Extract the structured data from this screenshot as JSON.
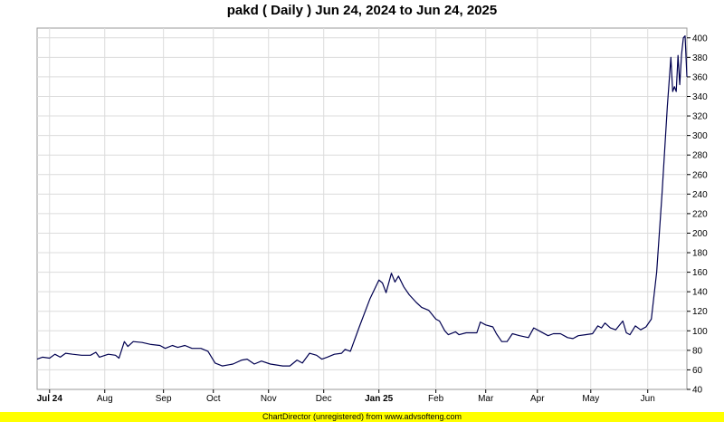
{
  "title": "pakd ( Daily ) Jun 24, 2024 to Jun 24, 2025",
  "footer": "ChartDirector (unregistered) from www.advsofteng.com",
  "colors": {
    "line": "#000050",
    "grid": "#dcdcdc",
    "footer_bg": "#ffff00"
  },
  "chart_data": {
    "type": "line",
    "title": "pakd ( Daily ) Jun 24, 2024 to Jun 24, 2025",
    "xlabel": "",
    "ylabel": "",
    "ylim": [
      40,
      410
    ],
    "xlim": [
      "2024-06-24",
      "2025-06-24"
    ],
    "y_ticks": [
      40,
      60,
      80,
      100,
      120,
      140,
      160,
      180,
      200,
      220,
      240,
      260,
      280,
      300,
      320,
      340,
      360,
      380,
      400
    ],
    "x_ticks": [
      {
        "date": "2024-07-01",
        "label": "Jul 24",
        "bold": true
      },
      {
        "date": "2024-08-01",
        "label": "Aug",
        "bold": false
      },
      {
        "date": "2024-09-03",
        "label": "Sep",
        "bold": false
      },
      {
        "date": "2024-10-01",
        "label": "Oct",
        "bold": false
      },
      {
        "date": "2024-11-01",
        "label": "Nov",
        "bold": false
      },
      {
        "date": "2024-12-02",
        "label": "Dec",
        "bold": false
      },
      {
        "date": "2025-01-02",
        "label": "Jan 25",
        "bold": true
      },
      {
        "date": "2025-02-03",
        "label": "Feb",
        "bold": false
      },
      {
        "date": "2025-03-03",
        "label": "Mar",
        "bold": false
      },
      {
        "date": "2025-04-01",
        "label": "Apr",
        "bold": false
      },
      {
        "date": "2025-05-01",
        "label": "May",
        "bold": false
      },
      {
        "date": "2025-06-02",
        "label": "Jun",
        "bold": false
      }
    ],
    "grid": true,
    "y_axis_side": "right",
    "series": [
      {
        "values": [
          {
            "x": "2024-06-24",
            "y": 71
          },
          {
            "x": "2024-06-27",
            "y": 73
          },
          {
            "x": "2024-07-01",
            "y": 72
          },
          {
            "x": "2024-07-04",
            "y": 76
          },
          {
            "x": "2024-07-07",
            "y": 73
          },
          {
            "x": "2024-07-10",
            "y": 77
          },
          {
            "x": "2024-07-14",
            "y": 76
          },
          {
            "x": "2024-07-19",
            "y": 75
          },
          {
            "x": "2024-07-24",
            "y": 75
          },
          {
            "x": "2024-07-27",
            "y": 78
          },
          {
            "x": "2024-07-29",
            "y": 73
          },
          {
            "x": "2024-08-03",
            "y": 76
          },
          {
            "x": "2024-08-07",
            "y": 75
          },
          {
            "x": "2024-08-09",
            "y": 72
          },
          {
            "x": "2024-08-12",
            "y": 89
          },
          {
            "x": "2024-08-14",
            "y": 84
          },
          {
            "x": "2024-08-17",
            "y": 89
          },
          {
            "x": "2024-08-22",
            "y": 88
          },
          {
            "x": "2024-08-27",
            "y": 86
          },
          {
            "x": "2024-09-01",
            "y": 85
          },
          {
            "x": "2024-09-04",
            "y": 82
          },
          {
            "x": "2024-09-08",
            "y": 85
          },
          {
            "x": "2024-09-11",
            "y": 83
          },
          {
            "x": "2024-09-15",
            "y": 85
          },
          {
            "x": "2024-09-19",
            "y": 82
          },
          {
            "x": "2024-09-24",
            "y": 82
          },
          {
            "x": "2024-09-28",
            "y": 79
          },
          {
            "x": "2024-10-02",
            "y": 67
          },
          {
            "x": "2024-10-06",
            "y": 64
          },
          {
            "x": "2024-10-12",
            "y": 66
          },
          {
            "x": "2024-10-17",
            "y": 70
          },
          {
            "x": "2024-10-20",
            "y": 71
          },
          {
            "x": "2024-10-24",
            "y": 66
          },
          {
            "x": "2024-10-28",
            "y": 69
          },
          {
            "x": "2024-11-02",
            "y": 66
          },
          {
            "x": "2024-11-09",
            "y": 64
          },
          {
            "x": "2024-11-13",
            "y": 64
          },
          {
            "x": "2024-11-17",
            "y": 70
          },
          {
            "x": "2024-11-20",
            "y": 67
          },
          {
            "x": "2024-11-24",
            "y": 77
          },
          {
            "x": "2024-11-28",
            "y": 75
          },
          {
            "x": "2024-12-01",
            "y": 71
          },
          {
            "x": "2024-12-04",
            "y": 73
          },
          {
            "x": "2024-12-08",
            "y": 76
          },
          {
            "x": "2024-12-12",
            "y": 77
          },
          {
            "x": "2024-12-14",
            "y": 81
          },
          {
            "x": "2024-12-17",
            "y": 79
          },
          {
            "x": "2024-12-22",
            "y": 104
          },
          {
            "x": "2024-12-28",
            "y": 133
          },
          {
            "x": "2025-01-02",
            "y": 152
          },
          {
            "x": "2025-01-04",
            "y": 149
          },
          {
            "x": "2025-01-06",
            "y": 139
          },
          {
            "x": "2025-01-09",
            "y": 159
          },
          {
            "x": "2025-01-11",
            "y": 150
          },
          {
            "x": "2025-01-13",
            "y": 156
          },
          {
            "x": "2025-01-16",
            "y": 145
          },
          {
            "x": "2025-01-19",
            "y": 137
          },
          {
            "x": "2025-01-23",
            "y": 129
          },
          {
            "x": "2025-01-26",
            "y": 124
          },
          {
            "x": "2025-01-30",
            "y": 121
          },
          {
            "x": "2025-02-03",
            "y": 112
          },
          {
            "x": "2025-02-05",
            "y": 110
          },
          {
            "x": "2025-02-08",
            "y": 100
          },
          {
            "x": "2025-02-10",
            "y": 96
          },
          {
            "x": "2025-02-14",
            "y": 99
          },
          {
            "x": "2025-02-16",
            "y": 96
          },
          {
            "x": "2025-02-20",
            "y": 98
          },
          {
            "x": "2025-02-26",
            "y": 98
          },
          {
            "x": "2025-02-28",
            "y": 109
          },
          {
            "x": "2025-03-03",
            "y": 106
          },
          {
            "x": "2025-03-07",
            "y": 104
          },
          {
            "x": "2025-03-09",
            "y": 97
          },
          {
            "x": "2025-03-12",
            "y": 89
          },
          {
            "x": "2025-03-15",
            "y": 89
          },
          {
            "x": "2025-03-18",
            "y": 97
          },
          {
            "x": "2025-03-22",
            "y": 95
          },
          {
            "x": "2025-03-27",
            "y": 93
          },
          {
            "x": "2025-03-30",
            "y": 103
          },
          {
            "x": "2025-04-02",
            "y": 100
          },
          {
            "x": "2025-04-07",
            "y": 95
          },
          {
            "x": "2025-04-10",
            "y": 97
          },
          {
            "x": "2025-04-14",
            "y": 97
          },
          {
            "x": "2025-04-18",
            "y": 93
          },
          {
            "x": "2025-04-21",
            "y": 92
          },
          {
            "x": "2025-04-24",
            "y": 95
          },
          {
            "x": "2025-04-28",
            "y": 96
          },
          {
            "x": "2025-05-02",
            "y": 97
          },
          {
            "x": "2025-05-05",
            "y": 105
          },
          {
            "x": "2025-05-07",
            "y": 103
          },
          {
            "x": "2025-05-09",
            "y": 108
          },
          {
            "x": "2025-05-12",
            "y": 103
          },
          {
            "x": "2025-05-15",
            "y": 101
          },
          {
            "x": "2025-05-19",
            "y": 110
          },
          {
            "x": "2025-05-21",
            "y": 98
          },
          {
            "x": "2025-05-23",
            "y": 96
          },
          {
            "x": "2025-05-26",
            "y": 105
          },
          {
            "x": "2025-05-29",
            "y": 101
          },
          {
            "x": "2025-06-01",
            "y": 104
          },
          {
            "x": "2025-06-04",
            "y": 112
          },
          {
            "x": "2025-06-07",
            "y": 160
          },
          {
            "x": "2025-06-10",
            "y": 240
          },
          {
            "x": "2025-06-13",
            "y": 330
          },
          {
            "x": "2025-06-15",
            "y": 380
          },
          {
            "x": "2025-06-16",
            "y": 345
          },
          {
            "x": "2025-06-17",
            "y": 350
          },
          {
            "x": "2025-06-18",
            "y": 345
          },
          {
            "x": "2025-06-19",
            "y": 382
          },
          {
            "x": "2025-06-20",
            "y": 352
          },
          {
            "x": "2025-06-21",
            "y": 383
          },
          {
            "x": "2025-06-22",
            "y": 400
          },
          {
            "x": "2025-06-23",
            "y": 402
          },
          {
            "x": "2025-06-24",
            "y": 360
          }
        ]
      }
    ]
  }
}
